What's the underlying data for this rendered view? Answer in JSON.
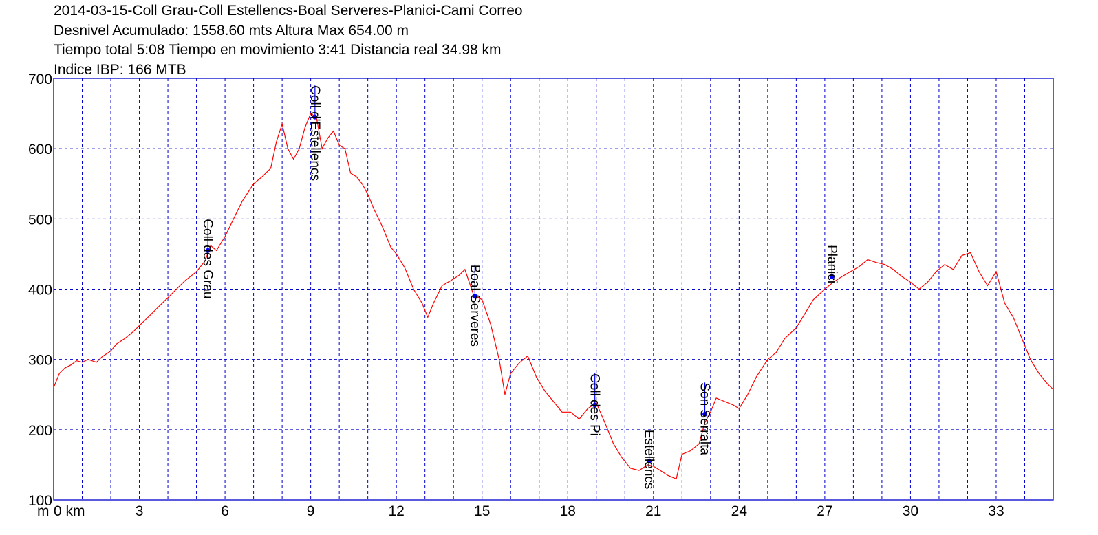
{
  "header": {
    "line1": "2014-03-15-Coll Grau-Coll Estellencs-Boal Serveres-Planici-Cami Correo",
    "line2": "Desnivel Acumulado: 1558.60 mts  Altura Max 654.00 m",
    "line3": "Tiempo total 5:08 Tiempo en movimiento 3:41 Distancia real 34.98 km",
    "line4": "Indice IBP: 166 MTB"
  },
  "chart_data": {
    "type": "line",
    "xlabel": "km",
    "ylabel": "m",
    "xlim": [
      0,
      35
    ],
    "ylim": [
      100,
      700
    ],
    "x_ticks": [
      0,
      3,
      6,
      9,
      12,
      15,
      18,
      21,
      24,
      27,
      30,
      33
    ],
    "x_tick_labels": [
      "0 km",
      "3",
      "6",
      "9",
      "12",
      "15",
      "18",
      "21",
      "24",
      "27",
      "30",
      "33"
    ],
    "y_ticks": [
      100,
      200,
      300,
      400,
      500,
      600,
      700
    ],
    "y_unit_label": "m",
    "grid": true,
    "colors": {
      "line": "#ff0000",
      "grid": "#0000cc",
      "frame": "#0000cc",
      "waypoint": "#0000ff"
    },
    "series": [
      {
        "x": [
          0,
          0.2,
          0.4,
          0.6,
          0.8,
          1.0,
          1.2,
          1.5,
          1.7,
          2.0,
          2.2,
          2.5,
          2.8,
          3.0,
          3.3,
          3.6,
          4.0,
          4.3,
          4.6,
          5.0,
          5.3,
          5.5,
          5.7,
          6.0,
          6.3,
          6.6,
          7.0,
          7.3,
          7.6,
          7.8,
          8.0,
          8.2,
          8.4,
          8.6,
          8.8,
          9.0,
          9.2,
          9.4,
          9.6,
          9.8,
          10.0,
          10.2,
          10.4,
          10.6,
          10.8,
          11.0,
          11.2,
          11.5,
          11.8,
          12.0,
          12.3,
          12.6,
          12.9,
          13.1,
          13.3,
          13.6,
          13.9,
          14.2,
          14.4,
          14.7,
          15.0,
          15.3,
          15.6,
          15.8,
          16.0,
          16.3,
          16.6,
          16.9,
          17.2,
          17.5,
          17.8,
          18.1,
          18.4,
          18.7,
          19.0,
          19.3,
          19.6,
          19.9,
          20.2,
          20.5,
          20.8,
          21.0,
          21.2,
          21.5,
          21.8,
          22.0,
          22.3,
          22.6,
          22.8,
          23.0,
          23.2,
          23.5,
          23.8,
          24.0,
          24.3,
          24.6,
          25.0,
          25.3,
          25.6,
          26.0,
          26.3,
          26.6,
          27.0,
          27.3,
          27.6,
          27.9,
          28.2,
          28.5,
          28.8,
          29.1,
          29.4,
          29.7,
          30.0,
          30.3,
          30.6,
          30.9,
          31.2,
          31.5,
          31.8,
          32.1,
          32.4,
          32.7,
          33.0,
          33.3,
          33.6,
          33.9,
          34.2,
          34.5,
          34.8,
          34.98
        ],
        "y": [
          260,
          280,
          288,
          292,
          298,
          296,
          300,
          296,
          304,
          312,
          322,
          330,
          340,
          348,
          360,
          372,
          388,
          400,
          412,
          425,
          440,
          462,
          455,
          475,
          500,
          525,
          550,
          560,
          572,
          610,
          635,
          600,
          585,
          600,
          630,
          650,
          645,
          600,
          615,
          625,
          605,
          600,
          565,
          560,
          550,
          535,
          515,
          490,
          460,
          450,
          430,
          400,
          380,
          360,
          380,
          405,
          412,
          420,
          428,
          392,
          385,
          350,
          300,
          250,
          280,
          295,
          305,
          275,
          255,
          240,
          225,
          225,
          215,
          230,
          238,
          210,
          180,
          160,
          145,
          142,
          150,
          148,
          143,
          135,
          130,
          165,
          170,
          180,
          210,
          225,
          245,
          240,
          235,
          230,
          250,
          275,
          300,
          310,
          330,
          345,
          365,
          385,
          400,
          410,
          418,
          425,
          432,
          442,
          438,
          435,
          428,
          418,
          410,
          400,
          410,
          425,
          435,
          428,
          448,
          452,
          425,
          405,
          425,
          380,
          360,
          330,
          300,
          280,
          265,
          258
        ]
      }
    ],
    "waypoints": [
      {
        "name": "Coll des Grau",
        "x": 5.4,
        "y": 455
      },
      {
        "name": "Coll d'Estellencs",
        "x": 9.15,
        "y": 645
      },
      {
        "name": "Boal Serveres",
        "x": 14.75,
        "y": 390
      },
      {
        "name": "Coll des Pi",
        "x": 18.95,
        "y": 235
      },
      {
        "name": "Estellencs",
        "x": 20.85,
        "y": 155
      },
      {
        "name": "Son Serralta",
        "x": 22.8,
        "y": 222
      },
      {
        "name": "Planici",
        "x": 27.25,
        "y": 418
      }
    ]
  }
}
